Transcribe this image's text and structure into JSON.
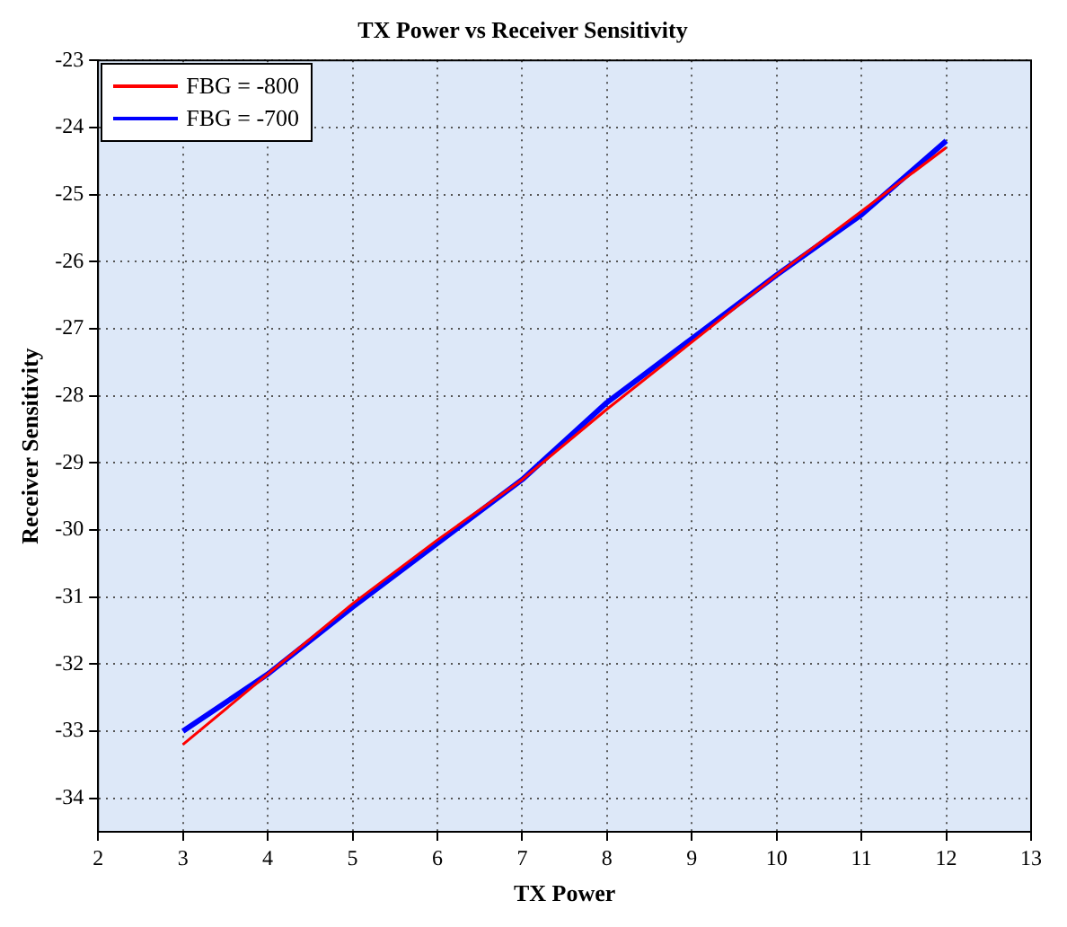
{
  "chart_data": {
    "type": "line",
    "title": "TX Power vs Receiver Sensitivity",
    "xlabel": "TX Power",
    "ylabel": "Receiver Sensitivity",
    "x": [
      3,
      4,
      5,
      6,
      7,
      8,
      9,
      10,
      11,
      12
    ],
    "series": [
      {
        "name": "FBG = -800",
        "color": "#ff0000",
        "values": [
          -33.2,
          -32.15,
          -31.1,
          -30.15,
          -29.25,
          -28.2,
          -27.2,
          -26.2,
          -25.25,
          -24.3
        ]
      },
      {
        "name": "FBG = -700",
        "color": "#0000ff",
        "values": [
          -33.0,
          -32.15,
          -31.15,
          -30.2,
          -29.25,
          -28.1,
          -27.15,
          -26.2,
          -25.3,
          -24.2
        ]
      }
    ],
    "xlim": [
      2,
      13
    ],
    "xticks": [
      2,
      3,
      4,
      5,
      6,
      7,
      8,
      9,
      10,
      11,
      12,
      13
    ],
    "ylim": [
      -34.5,
      -23
    ],
    "yticks": [
      -34,
      -33,
      -32,
      -31,
      -30,
      -29,
      -28,
      -27,
      -26,
      -25,
      -24,
      -23
    ],
    "grid": true,
    "legend": "top left",
    "marker": "none",
    "line_style": "solid"
  }
}
